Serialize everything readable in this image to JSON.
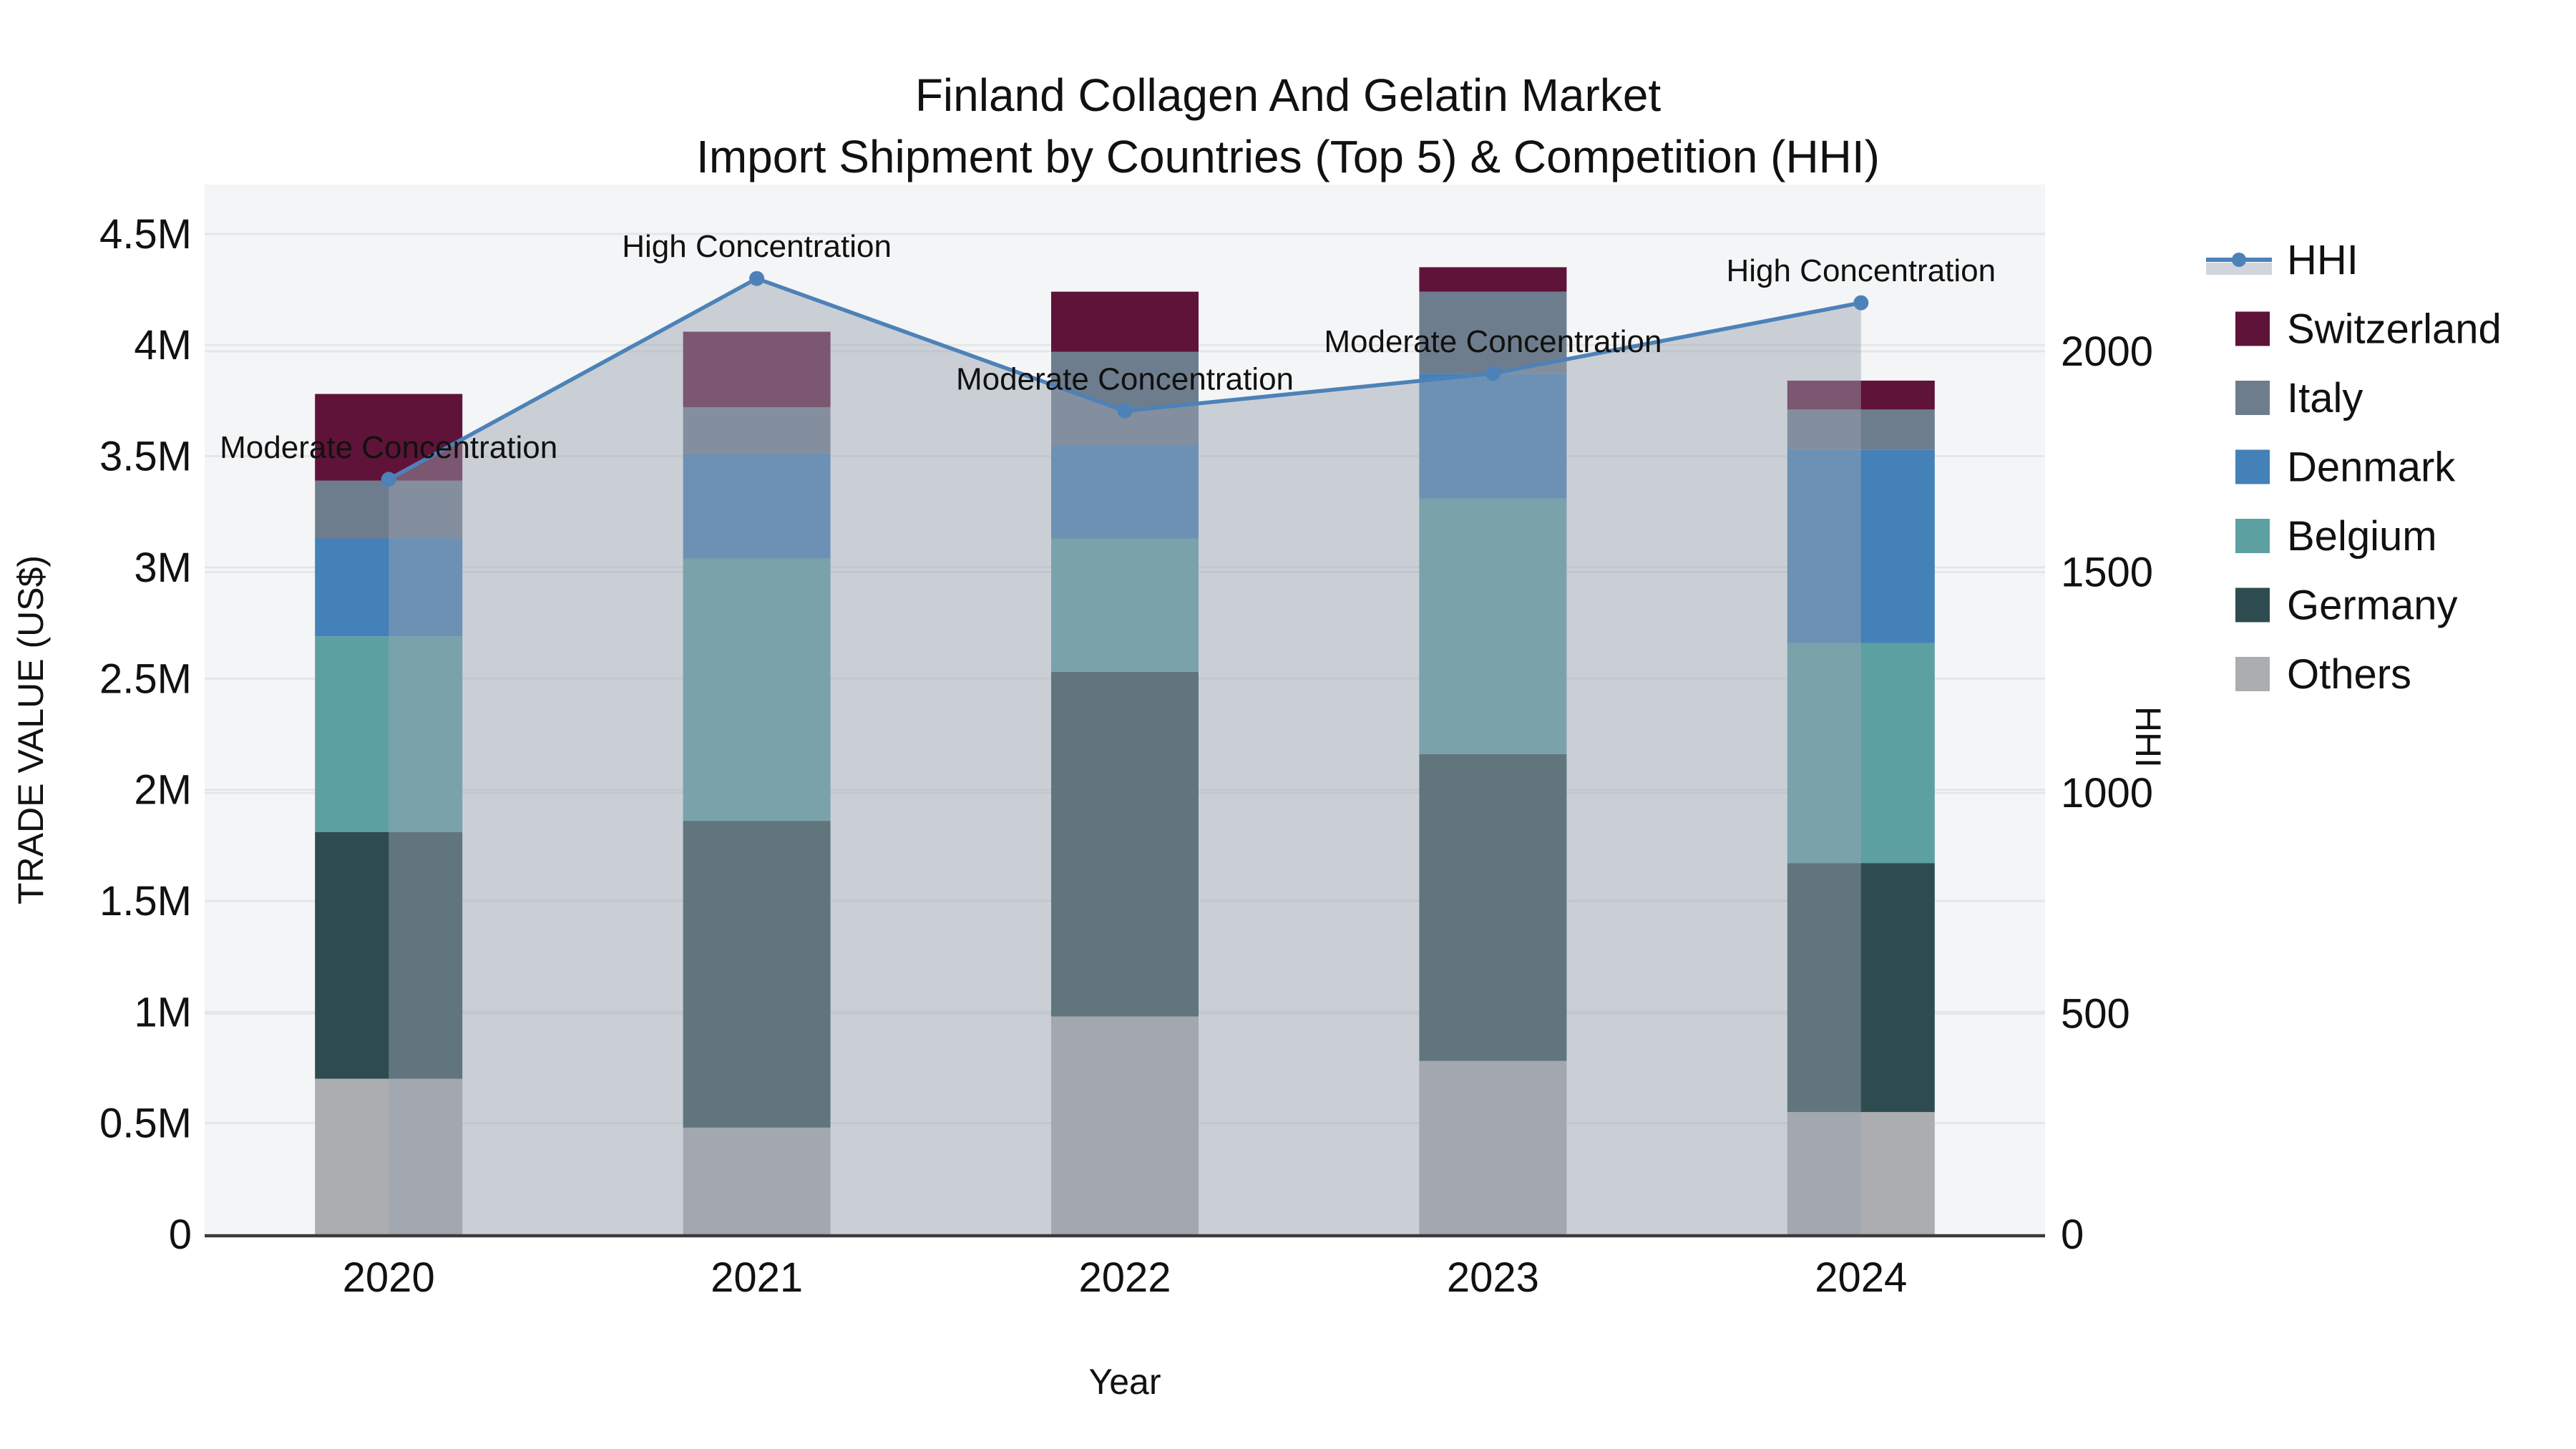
{
  "title": {
    "line1": "Finland Collagen And Gelatin Market",
    "line2": "Import Shipment by Countries (Top 5) & Competition (HHI)"
  },
  "axes": {
    "x": {
      "label": "Year",
      "tick_labels": [
        "2020",
        "2021",
        "2022",
        "2023",
        "2024"
      ]
    },
    "y_left": {
      "label": "TRADE VALUE (US$)",
      "ticks": [
        {
          "label": "0",
          "value": 0
        },
        {
          "label": "0.5M",
          "value": 0.5
        },
        {
          "label": "1M",
          "value": 1.0
        },
        {
          "label": "1.5M",
          "value": 1.5
        },
        {
          "label": "2M",
          "value": 2.0
        },
        {
          "label": "2.5M",
          "value": 2.5
        },
        {
          "label": "3M",
          "value": 3.0
        },
        {
          "label": "3.5M",
          "value": 3.5
        },
        {
          "label": "4M",
          "value": 4.0
        },
        {
          "label": "4.5M",
          "value": 4.5
        }
      ]
    },
    "y_right": {
      "label": "HHI",
      "ticks": [
        {
          "label": "0",
          "value": 0
        },
        {
          "label": "500",
          "value": 500
        },
        {
          "label": "1000",
          "value": 1000
        },
        {
          "label": "1500",
          "value": 1500
        },
        {
          "label": "2000",
          "value": 2000
        }
      ]
    }
  },
  "legend": {
    "items": [
      {
        "name": "HHI",
        "type": "line",
        "color": "#4d82b8"
      },
      {
        "name": "Switzerland",
        "type": "patch",
        "color": "#5f1338"
      },
      {
        "name": "Italy",
        "type": "patch",
        "color": "#6e7d8d"
      },
      {
        "name": "Denmark",
        "type": "patch",
        "color": "#4381b8"
      },
      {
        "name": "Belgium",
        "type": "patch",
        "color": "#5da0a2"
      },
      {
        "name": "Germany",
        "type": "patch",
        "color": "#2e4c4f"
      },
      {
        "name": "Others",
        "type": "patch",
        "color": "#abadae"
      }
    ]
  },
  "colors": {
    "plot_bg": "#f4f5f6",
    "grid": "#e4e6e8",
    "axis_line": "#3b3b3b",
    "hhi_line": "#4d82b8",
    "hhi_fill": "rgba(155,164,178,0.47)",
    "text": "#111111"
  },
  "chart_data": {
    "type": "bar+line",
    "title": "Finland Collagen And Gelatin Market — Import Shipment by Countries (Top 5) & Competition (HHI)",
    "categories": [
      "2020",
      "2021",
      "2022",
      "2023",
      "2024"
    ],
    "bar_value_unit": "US$ millions (left axis, TRADE VALUE (US$))",
    "stack_order_bottom_to_top": [
      "Others",
      "Germany",
      "Belgium",
      "Denmark",
      "Italy",
      "Switzerland"
    ],
    "series": [
      {
        "name": "Others",
        "color": "#abadae",
        "values": [
          0.7,
          0.48,
          0.98,
          0.78,
          0.55
        ]
      },
      {
        "name": "Germany",
        "color": "#2e4c4f",
        "values": [
          1.11,
          1.38,
          1.55,
          1.38,
          1.12
        ]
      },
      {
        "name": "Belgium",
        "color": "#5da0a2",
        "values": [
          0.88,
          1.18,
          0.6,
          1.15,
          0.99
        ]
      },
      {
        "name": "Denmark",
        "color": "#4381b8",
        "values": [
          0.44,
          0.47,
          0.42,
          0.56,
          0.87
        ]
      },
      {
        "name": "Italy",
        "color": "#6e7d8d",
        "values": [
          0.26,
          0.21,
          0.42,
          0.37,
          0.18
        ]
      },
      {
        "name": "Switzerland",
        "color": "#5f1338",
        "values": [
          0.39,
          0.34,
          0.27,
          0.11,
          0.13
        ]
      }
    ],
    "bar_totals": [
      3.78,
      4.06,
      4.24,
      4.35,
      3.84
    ],
    "line_series": {
      "name": "HHI",
      "axis": "right",
      "color": "#4d82b8",
      "values": [
        1710,
        2165,
        1865,
        1950,
        2110
      ],
      "annotations": [
        "Moderate Concentration",
        "High Concentration",
        "Moderate Concentration",
        "Moderate Concentration",
        "High Concentration"
      ],
      "area_fill": true
    },
    "xlabel": "Year",
    "ylabel_left": "TRADE VALUE (US$)",
    "ylabel_right": "HHI",
    "ylim_left": [
      0,
      4720000
    ],
    "ylim_right": [
      0,
      2378
    ],
    "grid": true,
    "legend_position": "right"
  }
}
